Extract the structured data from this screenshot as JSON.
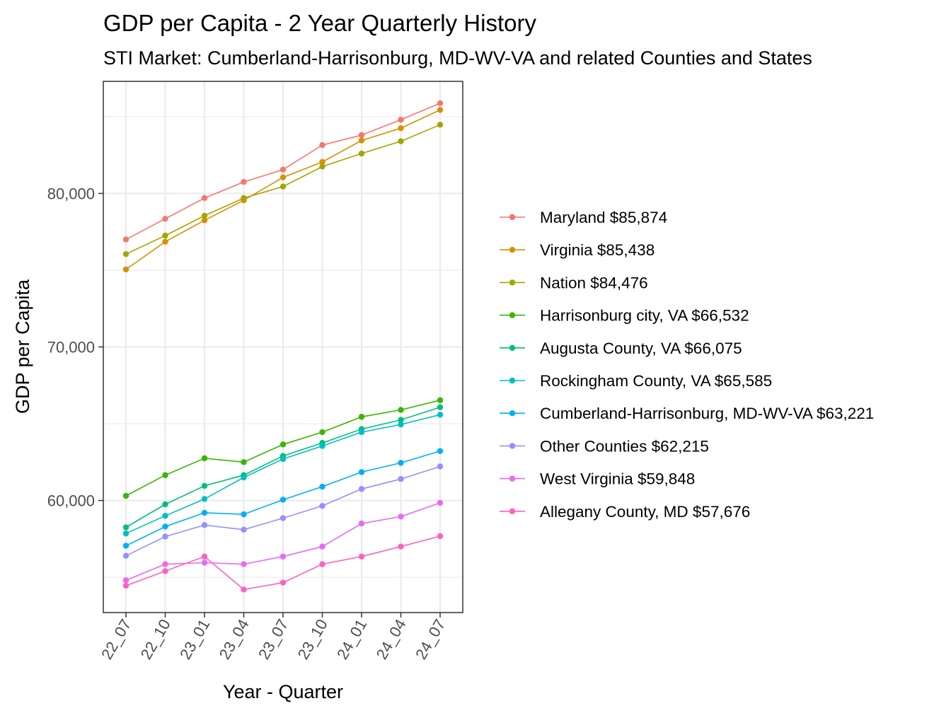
{
  "chart_data": {
    "type": "line",
    "title": "GDP per Capita - 2 Year Quarterly History",
    "subtitle": "STI Market: Cumberland-Harrisonburg, MD-WV-VA and related Counties and States",
    "xlabel": "Year - Quarter",
    "ylabel": "GDP per Capita",
    "categories": [
      "22_07",
      "22_10",
      "23_01",
      "23_04",
      "23_07",
      "23_10",
      "24_01",
      "24_04",
      "24_07"
    ],
    "ylim": [
      52700,
      87300
    ],
    "yticks": [
      60000,
      70000,
      80000
    ],
    "ytick_labels": [
      "60,000",
      "70,000",
      "80,000"
    ],
    "grid": true,
    "legend_position": "right",
    "series": [
      {
        "name": "Maryland $85,874",
        "color": "#F8766D",
        "values": [
          77000,
          78350,
          79700,
          80750,
          81550,
          83150,
          83800,
          84800,
          85874
        ]
      },
      {
        "name": "Virginia $85,438",
        "color": "#D89000",
        "values": [
          75050,
          76850,
          78250,
          79550,
          81050,
          82050,
          83450,
          84250,
          85438
        ]
      },
      {
        "name": "Nation $84,476",
        "color": "#A3A500",
        "values": [
          76050,
          77250,
          78550,
          79700,
          80450,
          81750,
          82600,
          83400,
          84476
        ]
      },
      {
        "name": "Harrisonburg city, VA $66,532",
        "color": "#39B600",
        "values": [
          60300,
          61650,
          62750,
          62500,
          63650,
          64450,
          65450,
          65900,
          66532
        ]
      },
      {
        "name": "Augusta County, VA $66,075",
        "color": "#00BF7D",
        "values": [
          58250,
          59750,
          60950,
          61650,
          62900,
          63750,
          64650,
          65250,
          66075
        ]
      },
      {
        "name": "Rockingham County, VA $65,585",
        "color": "#00BFC4",
        "values": [
          57850,
          59000,
          60100,
          61500,
          62700,
          63550,
          64450,
          64950,
          65585
        ]
      },
      {
        "name": "Cumberland-Harrisonburg, MD-WV-VA $63,221",
        "color": "#00B0F6",
        "values": [
          57050,
          58300,
          59200,
          59100,
          60050,
          60900,
          61850,
          62450,
          63221
        ]
      },
      {
        "name": "Other Counties $62,215",
        "color": "#9590FF",
        "values": [
          56400,
          57650,
          58400,
          58100,
          58850,
          59650,
          60750,
          61400,
          62215
        ]
      },
      {
        "name": "West Virginia $59,848",
        "color": "#E76BF3",
        "values": [
          54800,
          55850,
          55950,
          55850,
          56350,
          57000,
          58500,
          58950,
          59848
        ]
      },
      {
        "name": "Allegany County, MD $57,676",
        "color": "#FF62BC",
        "values": [
          54450,
          55400,
          56350,
          54200,
          54650,
          55850,
          56350,
          57000,
          57676
        ]
      }
    ]
  }
}
